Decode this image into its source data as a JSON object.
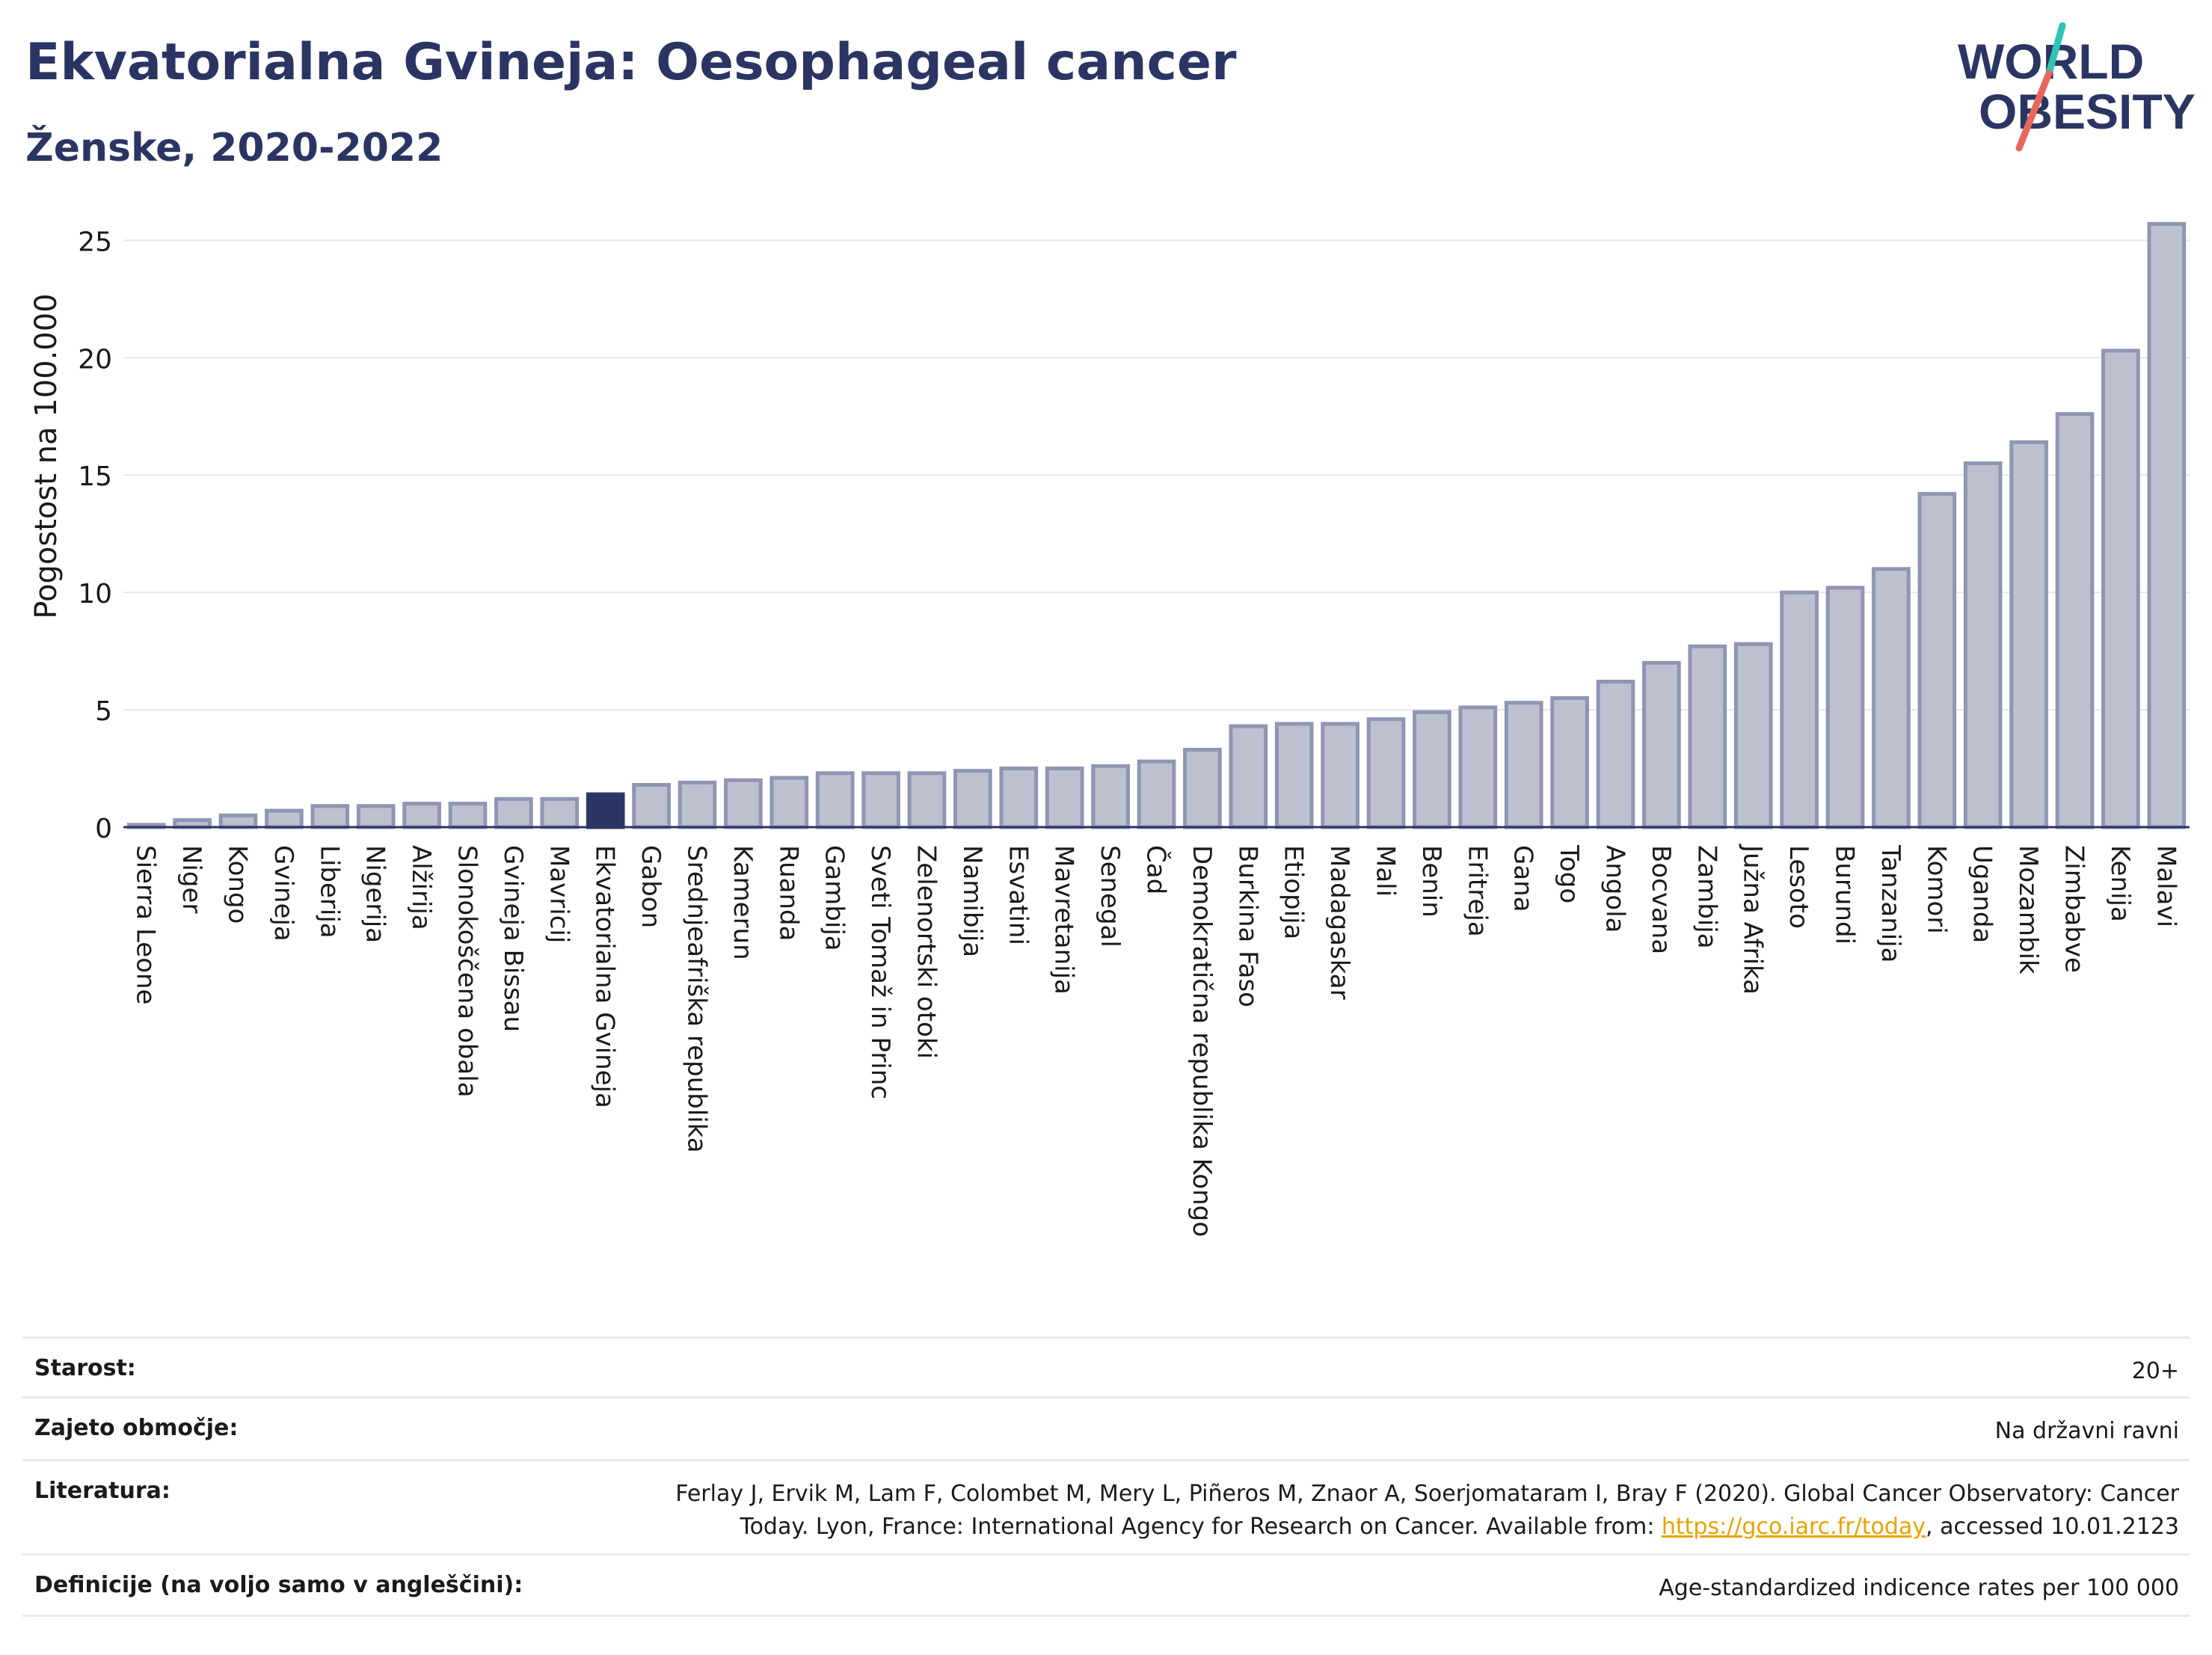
{
  "header": {
    "title": "Ekvatorialna Gvineja: Oesophageal cancer",
    "subtitle": "Ženske, 2020-2022"
  },
  "logo": {
    "line1": "WORLD",
    "line2": "OBESITY"
  },
  "chart_data": {
    "type": "bar",
    "ylabel": "Pogostost na 100.000",
    "xlabel": "",
    "ylim": [
      0,
      26
    ],
    "yticks": [
      0,
      5,
      10,
      15,
      20,
      25
    ],
    "grid": true,
    "highlight": "Ekvatorialna Gvineja",
    "colors": {
      "bar": "#bcc0cf",
      "bar_edge": "#8f95b2",
      "highlight": "#2b3563",
      "grid": "#e6e7ee",
      "axis": "#2b3563"
    },
    "categories": [
      "Sierra Leone",
      "Niger",
      "Kongo",
      "Gvineja",
      "Liberija",
      "Nigerija",
      "Alžirija",
      "Slonokoščena obala",
      "Gvineja Bissau",
      "Mavricij",
      "Ekvatorialna Gvineja",
      "Gabon",
      "Srednjeafriška republika",
      "Kamerun",
      "Ruanda",
      "Gambija",
      "Sveti Tomaž in Princ",
      "Zelenortski otoki",
      "Namibija",
      "Esvatini",
      "Mavretanija",
      "Senegal",
      "Čad",
      "Demokratična republika Kongo",
      "Burkina Faso",
      "Etiopija",
      "Madagaskar",
      "Mali",
      "Benin",
      "Eritreja",
      "Gana",
      "Togo",
      "Angola",
      "Bocvana",
      "Zambija",
      "Južna Afrika",
      "Lesoto",
      "Burundi",
      "Tanzanija",
      "Komori",
      "Uganda",
      "Mozambik",
      "Zimbabve",
      "Kenija",
      "Malavi"
    ],
    "values": [
      0.1,
      0.3,
      0.5,
      0.7,
      0.9,
      0.9,
      1.0,
      1.0,
      1.2,
      1.2,
      1.4,
      1.8,
      1.9,
      2.0,
      2.1,
      2.3,
      2.3,
      2.3,
      2.4,
      2.5,
      2.5,
      2.6,
      2.8,
      3.3,
      4.3,
      4.4,
      4.4,
      4.6,
      4.9,
      5.1,
      5.3,
      5.5,
      6.2,
      7.0,
      7.7,
      7.8,
      10.0,
      10.2,
      11.0,
      14.2,
      15.5,
      16.4,
      17.6,
      20.3,
      25.7
    ]
  },
  "meta": {
    "rows": [
      {
        "key": "Starost:",
        "value": "20+"
      },
      {
        "key": "Zajeto območje:",
        "value": "Na državni ravni"
      },
      {
        "key": "Literatura:",
        "value_line1": "Ferlay J, Ervik M, Lam F, Colombet M, Mery L, Piñeros M, Znaor A, Soerjomataram I, Bray F (2020). Global Cancer Observatory: Cancer",
        "value_line2_pre": "Today. Lyon, France: International Agency for Research on Cancer. Available from: ",
        "value_link": "https://gco.iarc.fr/today",
        "value_line2_post": ", accessed 10.01.2123"
      },
      {
        "key": "Definicije (na voljo samo v angleščini):",
        "value": "Age-standardized indicence rates per 100 000"
      }
    ]
  }
}
